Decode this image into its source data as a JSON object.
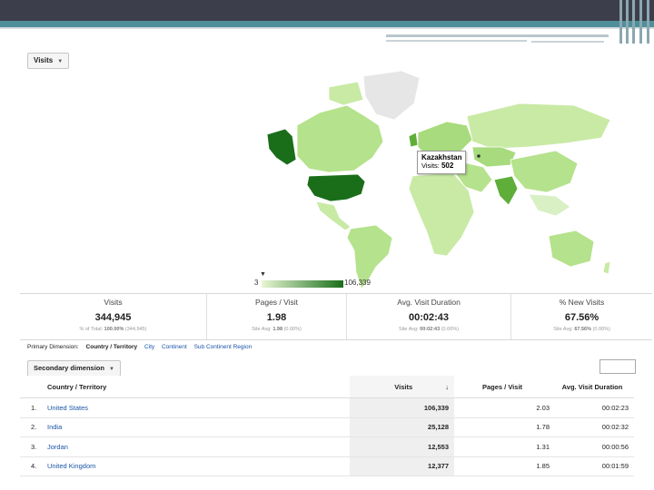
{
  "metric_button": {
    "label": "Visits"
  },
  "map": {
    "tooltip_country": "Kazakhstan",
    "tooltip_visits_label": "Visits:",
    "tooltip_visits_value": "502",
    "legend_min": "3",
    "legend_max": "106,339",
    "colors": {
      "high": "#1a6e1a",
      "mid": "#7fc35a",
      "low": "#d9f0c4",
      "none": "#e6e6e6",
      "ocean": "#ffffff"
    }
  },
  "scorecards": [
    {
      "label": "Visits",
      "value": "344,945",
      "sub_prefix": "% of Total:",
      "sub_bold": "100.00%",
      "sub_suffix": "(344,945)"
    },
    {
      "label": "Pages / Visit",
      "value": "1.98",
      "sub_prefix": "Site Avg:",
      "sub_bold": "1.98",
      "sub_suffix": "(0.00%)"
    },
    {
      "label": "Avg. Visit Duration",
      "value": "00:02:43",
      "sub_prefix": "Site Avg:",
      "sub_bold": "00:02:43",
      "sub_suffix": "(0.00%)"
    },
    {
      "label": "% New Visits",
      "value": "67.56%",
      "sub_prefix": "Site Avg:",
      "sub_bold": "67.56%",
      "sub_suffix": "(0.00%)"
    }
  ],
  "primary_dimension": {
    "label": "Primary Dimension:",
    "current": "Country / Territory",
    "links": [
      "City",
      "Continent",
      "Sub Continent Region"
    ]
  },
  "secondary_dimension": {
    "label": "Secondary dimension"
  },
  "table": {
    "headers": [
      "Country / Territory",
      "Visits",
      "Pages / Visit",
      "Avg. Visit Duration"
    ],
    "sort_icon": "arrow-down-icon",
    "rows": [
      {
        "idx": "1.",
        "country": "United States",
        "visits": "106,339",
        "ppv": "2.03",
        "dur": "00:02:23"
      },
      {
        "idx": "2.",
        "country": "India",
        "visits": "25,128",
        "ppv": "1.78",
        "dur": "00:02:32"
      },
      {
        "idx": "3.",
        "country": "Jordan",
        "visits": "12,553",
        "ppv": "1.31",
        "dur": "00:00:56"
      },
      {
        "idx": "4.",
        "country": "United Kingdom",
        "visits": "12,377",
        "ppv": "1.85",
        "dur": "00:01:59"
      }
    ]
  }
}
